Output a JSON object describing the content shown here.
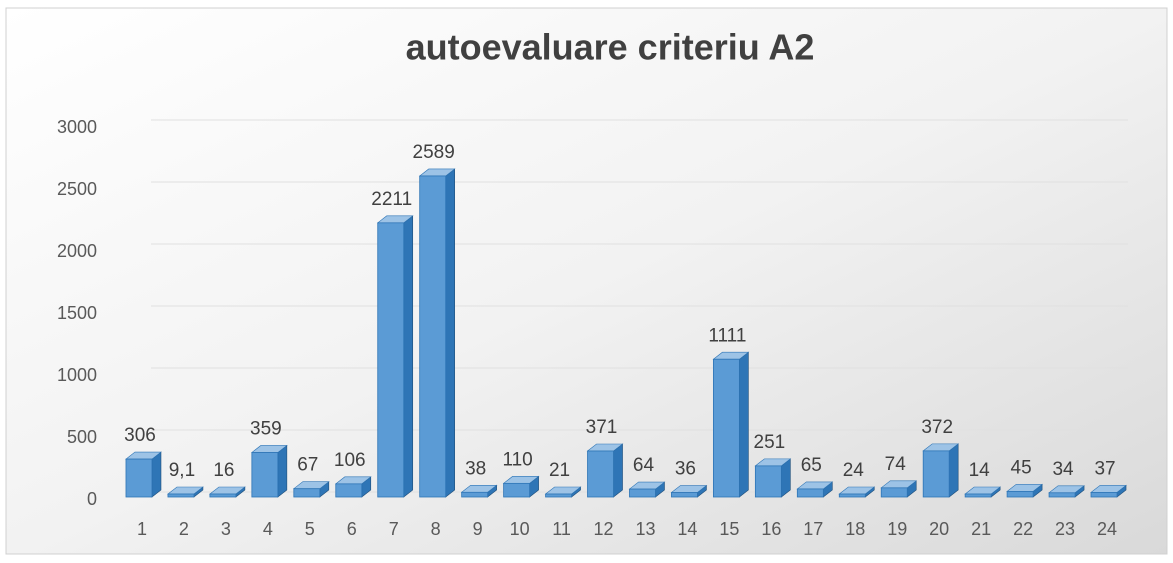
{
  "chart_data": {
    "type": "bar3d",
    "title": "autoevaluare criteriu A2",
    "categories": [
      "1",
      "2",
      "3",
      "4",
      "5",
      "6",
      "7",
      "8",
      "9",
      "10",
      "11",
      "12",
      "13",
      "14",
      "15",
      "16",
      "17",
      "18",
      "19",
      "20",
      "21",
      "22",
      "23",
      "24"
    ],
    "values": [
      306,
      9.1,
      16,
      359,
      67,
      106,
      2211,
      2589,
      38,
      110,
      21,
      371,
      64,
      36,
      1111,
      251,
      65,
      24,
      74,
      372,
      14,
      45,
      34,
      37
    ],
    "value_labels": [
      "306",
      "9,1",
      "16",
      "359",
      "67",
      "106",
      "2211",
      "2589",
      "38",
      "110",
      "21",
      "371",
      "64",
      "36",
      "1111",
      "251",
      "65",
      "24",
      "74",
      "372",
      "14",
      "45",
      "34",
      "37"
    ],
    "color": "#5b9bd5",
    "ylim": [
      0,
      3000
    ],
    "yticks": [
      0,
      500,
      1000,
      1500,
      2000,
      2500,
      3000
    ],
    "grid": true
  }
}
